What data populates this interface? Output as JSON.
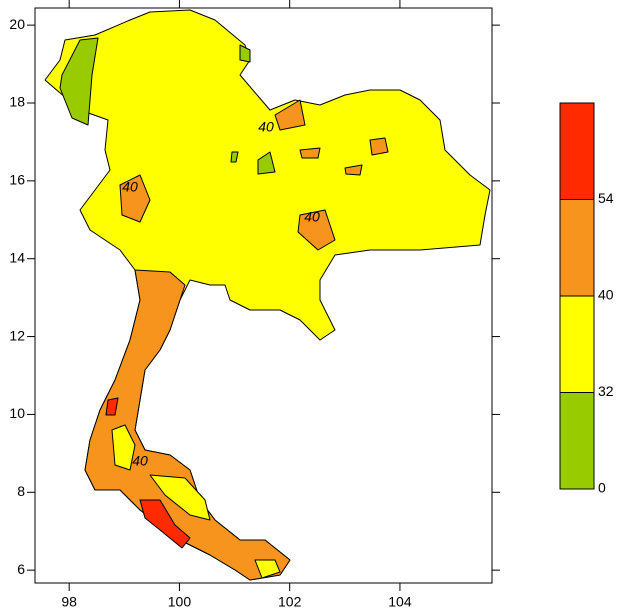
{
  "chart_data": {
    "type": "map",
    "xlim": [
      97.38,
      105.67
    ],
    "ylim": [
      5.67,
      20.44
    ],
    "xticks": [
      98,
      100,
      102,
      104
    ],
    "yticks": [
      6,
      8,
      10,
      12,
      14,
      16,
      18,
      20
    ],
    "colorbar": {
      "levels": [
        0,
        32,
        40,
        54
      ],
      "colors": [
        "#99cc00",
        "#ffff00",
        "#f7941d",
        "#ff2a00"
      ]
    },
    "contour_labels": [
      "40",
      "40",
      "40",
      "40"
    ]
  }
}
